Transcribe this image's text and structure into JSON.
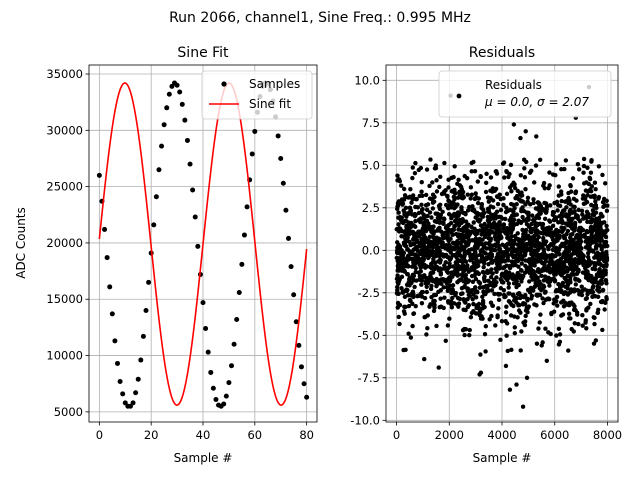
{
  "suptitle": "Run 2066, channel1, Sine Freq.: 0.995 MHz",
  "colors": {
    "samples": "#000000",
    "fit": "#ff0000",
    "grid": "#b0b0b0"
  },
  "chart_data": [
    {
      "type": "line",
      "title": "Sine Fit",
      "xlabel": "Sample #",
      "ylabel": "ADC Counts",
      "xlim": [
        -4,
        84
      ],
      "ylim": [
        4100,
        35800
      ],
      "xticks": [
        0,
        20,
        40,
        60,
        80
      ],
      "yticks": [
        5000,
        10000,
        15000,
        20000,
        25000,
        30000,
        35000
      ],
      "grid": true,
      "legend_position": "top-right",
      "fit_model": {
        "offset": 19900,
        "amplitude": 14300,
        "period": 40.2,
        "phase_sample": 19.9
      },
      "series": [
        {
          "name": "Samples",
          "style": "points",
          "x": [
            0,
            1,
            2,
            3,
            4,
            5,
            6,
            7,
            8,
            9,
            10,
            11,
            12,
            13,
            14,
            15,
            16,
            17,
            18,
            19,
            20,
            21,
            22,
            23,
            24,
            25,
            26,
            27,
            28,
            29,
            30,
            31,
            32,
            33,
            34,
            35,
            36,
            37,
            38,
            39,
            40,
            41,
            42,
            43,
            44,
            45,
            46,
            47,
            48,
            49,
            50,
            51,
            52,
            53,
            54,
            55,
            56,
            57,
            58,
            59,
            60,
            61,
            62,
            63,
            64,
            65,
            66,
            67,
            68,
            69,
            70,
            71,
            72,
            73,
            74,
            75,
            76,
            77,
            78,
            79,
            80
          ],
          "y": [
            26000,
            23700,
            21200,
            18700,
            16100,
            13700,
            11300,
            9300,
            7700,
            6600,
            5800,
            5500,
            5500,
            5800,
            6700,
            7900,
            9600,
            11700,
            14000,
            16500,
            19100,
            21600,
            24100,
            26500,
            28600,
            30500,
            32000,
            33200,
            33900,
            34200,
            34000,
            33400,
            32300,
            30900,
            29100,
            27000,
            24700,
            22300,
            19700,
            17200,
            14700,
            12400,
            10300,
            8500,
            7100,
            6100,
            5600,
            5500,
            5700,
            6400,
            7600,
            9100,
            11000,
            13200,
            15600,
            18100,
            20700,
            23200,
            25600,
            27900,
            29900,
            31600,
            33000,
            33900,
            34200,
            34100,
            33600,
            32600,
            31200,
            29500,
            27500,
            25300,
            22900,
            20400,
            17900,
            15400,
            13000,
            10900,
            9000,
            7500,
            6300
          ]
        },
        {
          "name": "Sine fit",
          "style": "line",
          "x_range": [
            0,
            80
          ]
        }
      ]
    },
    {
      "type": "scatter",
      "title": "Residuals",
      "xlabel": "Sample #",
      "ylabel": "",
      "xlim": [
        -400,
        8400
      ],
      "ylim": [
        -10.1,
        10.9
      ],
      "xticks": [
        0,
        2000,
        4000,
        6000,
        8000
      ],
      "yticks": [
        -10.0,
        -7.5,
        -5.0,
        -2.5,
        0.0,
        2.5,
        5.0,
        7.5,
        10.0
      ],
      "grid": true,
      "legend_position": "top-right",
      "series": [
        {
          "name": "Residuals",
          "style": "points",
          "n_points": 8000,
          "mean": 0.0,
          "std": 2.07,
          "x": [
            2050,
            4450,
            4900,
            4700,
            5300,
            6800,
            7300,
            3150,
            4300,
            4800,
            4950,
            4550,
            3200,
            4150,
            5700,
            1050,
            1600
          ],
          "y": [
            9.1,
            7.4,
            7.0,
            6.6,
            6.7,
            7.8,
            9.6,
            -7.3,
            -8.2,
            -9.2,
            -7.5,
            -7.9,
            -7.2,
            -6.8,
            -6.5,
            -6.4,
            -6.9
          ]
        }
      ]
    }
  ],
  "legend_residuals": {
    "label": "Residuals",
    "stats": "μ = 0.0, σ = 2.07"
  }
}
